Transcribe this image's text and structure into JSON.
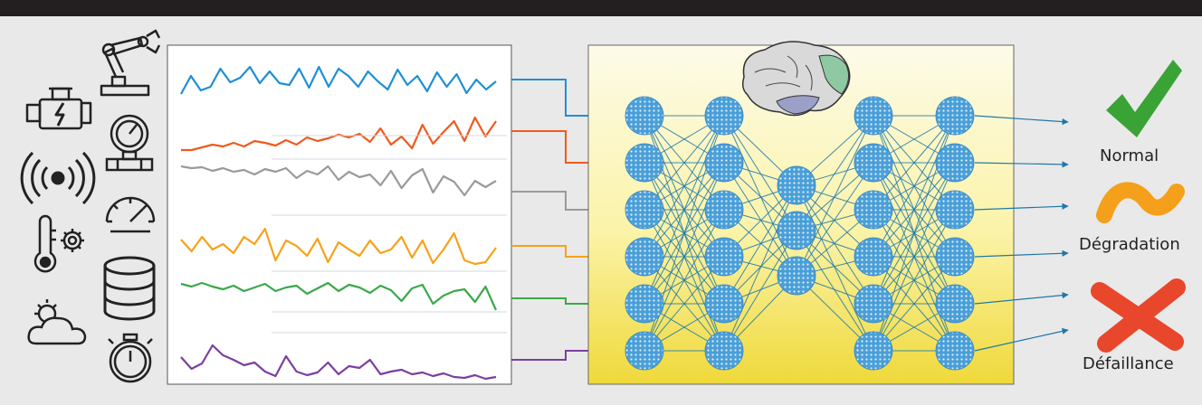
{
  "outputs": {
    "normal": "Normal",
    "degradation": "Dégradation",
    "failure": "Défaillance"
  },
  "sensor_icons": [
    "robot-arm-icon",
    "engine-icon",
    "pressure-gauge-icon",
    "wireless-signal-icon",
    "speedometer-icon",
    "thermometer-icon",
    "gear-icon",
    "database-icon",
    "weather-icon",
    "stopwatch-icon"
  ],
  "series_colors": [
    "#1f8fd6",
    "#f05a1e",
    "#9a9a9a",
    "#f7a21b",
    "#3aa84a",
    "#7b3fa0"
  ],
  "network_layers": [
    6,
    6,
    3,
    6,
    6
  ],
  "colors": {
    "node": "#4a9fd8",
    "edge": "#1f78a8",
    "check": "#3aa335",
    "tilde": "#f5a01a",
    "cross": "#e8472b"
  }
}
